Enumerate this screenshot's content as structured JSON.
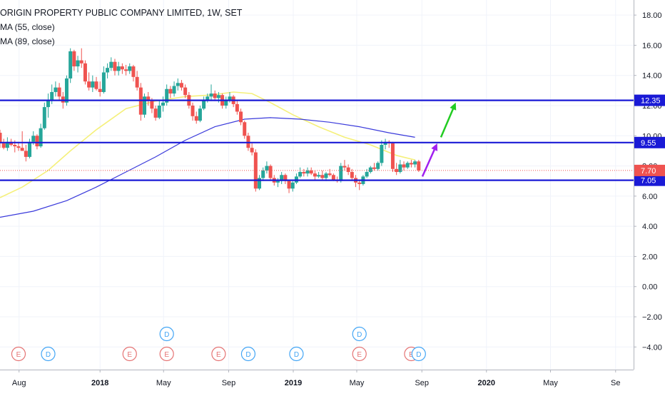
{
  "header": {
    "title": "ORIGIN PROPERTY PUBLIC COMPANY LIMITED, 1W, SET",
    "indicators": [
      "MA (55, close)",
      "MA (89, close)"
    ]
  },
  "colors": {
    "up": "#26a69a",
    "down": "#ef5350",
    "ma55": "#f5f07a",
    "ma89": "#3a3adb",
    "level": "#1a1ad6",
    "arrow_purple": "#a020f0",
    "arrow_green": "#22cc22",
    "current_price": "#ef5350",
    "earnings": "#e57373",
    "dividend": "#42a5f5"
  },
  "chart_data": {
    "type": "candlestick",
    "title": "ORIGIN PROPERTY PUBLIC COMPANY LIMITED, 1W, SET",
    "y_axis": {
      "min": -5.5,
      "max": 19,
      "ticks": [
        18,
        16,
        14,
        12,
        10,
        8,
        6,
        4,
        2,
        0,
        -2,
        -4
      ],
      "tick_labels": [
        "18.00",
        "16.00",
        "14.00",
        "12.00",
        "10.00",
        "8.00",
        "6.00",
        "4.00",
        "2.00",
        "0.00",
        "−2.00",
        "−4.00"
      ]
    },
    "x_axis": {
      "start": "2017-06-26",
      "end": "2020-10-05",
      "ticks": [
        {
          "label": "Aug",
          "date": "2017-08-01"
        },
        {
          "label": "2018",
          "date": "2018-01-01"
        },
        {
          "label": "May",
          "date": "2018-05-01"
        },
        {
          "label": "Sep",
          "date": "2018-09-01"
        },
        {
          "label": "2019",
          "date": "2019-01-01"
        },
        {
          "label": "May",
          "date": "2019-05-01"
        },
        {
          "label": "Sep",
          "date": "2019-09-01"
        },
        {
          "label": "2020",
          "date": "2020-01-01"
        },
        {
          "label": "May",
          "date": "2020-05-01"
        },
        {
          "label": "Se",
          "date": "2020-09-01"
        }
      ]
    },
    "candles": [
      [
        "2017-06-26",
        10.2,
        10.4,
        9.2,
        9.5
      ],
      [
        "2017-07-03",
        9.5,
        9.8,
        9.1,
        9.2
      ],
      [
        "2017-07-10",
        9.2,
        9.9,
        9.0,
        9.6
      ],
      [
        "2017-07-17",
        9.6,
        9.8,
        9.3,
        9.4
      ],
      [
        "2017-07-24",
        9.4,
        9.7,
        8.9,
        9.3
      ],
      [
        "2017-07-31",
        9.3,
        9.6,
        9.0,
        9.2
      ],
      [
        "2017-08-07",
        9.2,
        10.3,
        9.0,
        9.0
      ],
      [
        "2017-08-14",
        9.0,
        9.4,
        8.3,
        8.6
      ],
      [
        "2017-08-21",
        8.6,
        9.8,
        8.5,
        9.6
      ],
      [
        "2017-08-28",
        9.6,
        10.3,
        9.4,
        10.0
      ],
      [
        "2017-09-04",
        10.0,
        10.1,
        9.1,
        9.3
      ],
      [
        "2017-09-11",
        9.3,
        10.8,
        9.2,
        10.5
      ],
      [
        "2017-09-18",
        10.5,
        12.2,
        10.4,
        11.9
      ],
      [
        "2017-09-25",
        11.9,
        12.8,
        11.2,
        12.4
      ],
      [
        "2017-10-02",
        12.4,
        13.4,
        12.1,
        12.9
      ],
      [
        "2017-10-09",
        12.9,
        13.6,
        12.6,
        13.2
      ],
      [
        "2017-10-16",
        13.2,
        13.5,
        12.3,
        12.6
      ],
      [
        "2017-10-23",
        12.6,
        12.9,
        11.8,
        12.2
      ],
      [
        "2017-10-30",
        12.2,
        14.0,
        12.0,
        13.8
      ],
      [
        "2017-11-06",
        13.8,
        15.8,
        13.5,
        15.6
      ],
      [
        "2017-11-13",
        15.6,
        15.7,
        14.3,
        14.6
      ],
      [
        "2017-11-20",
        14.6,
        15.3,
        14.2,
        15.0
      ],
      [
        "2017-11-27",
        15.0,
        15.8,
        14.5,
        14.8
      ],
      [
        "2017-12-04",
        14.8,
        15.0,
        13.4,
        13.6
      ],
      [
        "2017-12-11",
        13.6,
        14.2,
        13.0,
        13.2
      ],
      [
        "2017-12-18",
        13.2,
        14.0,
        12.9,
        13.6
      ],
      [
        "2017-12-25",
        13.6,
        13.9,
        13.0,
        13.1
      ],
      [
        "2018-01-01",
        13.1,
        13.6,
        12.6,
        12.9
      ],
      [
        "2018-01-08",
        12.9,
        14.6,
        12.8,
        14.2
      ],
      [
        "2018-01-15",
        14.2,
        14.8,
        13.8,
        14.5
      ],
      [
        "2018-01-22",
        14.5,
        15.2,
        14.3,
        14.9
      ],
      [
        "2018-01-29",
        14.9,
        15.1,
        14.0,
        14.3
      ],
      [
        "2018-02-05",
        14.3,
        14.9,
        14.0,
        14.6
      ],
      [
        "2018-02-12",
        14.6,
        14.8,
        14.1,
        14.4
      ],
      [
        "2018-02-19",
        14.4,
        14.7,
        14.0,
        14.3
      ],
      [
        "2018-02-26",
        14.3,
        14.8,
        14.1,
        14.6
      ],
      [
        "2018-03-05",
        14.6,
        14.7,
        13.6,
        13.9
      ],
      [
        "2018-03-12",
        13.9,
        14.3,
        13.0,
        13.2
      ],
      [
        "2018-03-19",
        13.2,
        13.5,
        11.0,
        11.4
      ],
      [
        "2018-03-26",
        11.4,
        12.8,
        11.2,
        12.6
      ],
      [
        "2018-04-02",
        12.6,
        12.9,
        12.0,
        12.3
      ],
      [
        "2018-04-09",
        12.3,
        12.5,
        11.5,
        11.8
      ],
      [
        "2018-04-16",
        11.8,
        12.0,
        11.0,
        11.2
      ],
      [
        "2018-04-23",
        11.2,
        12.4,
        11.1,
        12.0
      ],
      [
        "2018-04-30",
        12.0,
        12.6,
        11.6,
        12.2
      ],
      [
        "2018-05-07",
        12.2,
        13.4,
        12.0,
        13.1
      ],
      [
        "2018-05-14",
        13.1,
        13.3,
        12.5,
        12.8
      ],
      [
        "2018-05-21",
        12.8,
        13.6,
        12.6,
        13.3
      ],
      [
        "2018-05-28",
        13.3,
        13.8,
        13.0,
        13.5
      ],
      [
        "2018-06-04",
        13.5,
        13.7,
        13.0,
        13.2
      ],
      [
        "2018-06-11",
        13.2,
        13.4,
        12.5,
        12.7
      ],
      [
        "2018-06-18",
        12.7,
        12.9,
        11.8,
        12.0
      ],
      [
        "2018-06-25",
        12.0,
        12.2,
        11.0,
        11.3
      ],
      [
        "2018-07-02",
        11.3,
        11.6,
        10.8,
        11.0
      ],
      [
        "2018-07-09",
        11.0,
        12.0,
        10.9,
        11.8
      ],
      [
        "2018-07-16",
        11.8,
        12.6,
        11.7,
        12.4
      ],
      [
        "2018-07-23",
        12.4,
        12.8,
        12.2,
        12.6
      ],
      [
        "2018-07-30",
        12.6,
        13.4,
        12.3,
        12.8
      ],
      [
        "2018-08-06",
        12.8,
        13.0,
        12.3,
        12.5
      ],
      [
        "2018-08-13",
        12.5,
        12.9,
        12.2,
        12.7
      ],
      [
        "2018-08-20",
        12.7,
        12.8,
        11.8,
        12.0
      ],
      [
        "2018-08-27",
        12.0,
        12.6,
        11.8,
        12.4
      ],
      [
        "2018-09-03",
        12.4,
        12.9,
        12.2,
        12.6
      ],
      [
        "2018-09-10",
        12.6,
        12.7,
        11.9,
        12.1
      ],
      [
        "2018-09-17",
        12.1,
        12.3,
        11.4,
        11.6
      ],
      [
        "2018-09-24",
        11.6,
        11.8,
        10.7,
        10.9
      ],
      [
        "2018-10-01",
        10.9,
        11.0,
        9.8,
        10.0
      ],
      [
        "2018-10-08",
        10.0,
        10.2,
        9.0,
        9.2
      ],
      [
        "2018-10-15",
        9.2,
        9.5,
        8.7,
        8.9
      ],
      [
        "2018-10-22",
        8.9,
        9.1,
        6.3,
        6.5
      ],
      [
        "2018-10-29",
        6.5,
        7.4,
        6.4,
        7.2
      ],
      [
        "2018-11-05",
        7.2,
        7.9,
        7.0,
        7.7
      ],
      [
        "2018-11-12",
        7.7,
        8.3,
        7.5,
        8.0
      ],
      [
        "2018-11-19",
        8.0,
        8.1,
        7.0,
        7.2
      ],
      [
        "2018-11-26",
        7.2,
        7.4,
        6.7,
        6.9
      ],
      [
        "2018-12-03",
        6.9,
        7.2,
        6.6,
        7.0
      ],
      [
        "2018-12-10",
        7.0,
        7.6,
        6.8,
        7.4
      ],
      [
        "2018-12-17",
        7.4,
        7.5,
        6.8,
        7.0
      ],
      [
        "2018-12-24",
        7.0,
        7.1,
        6.2,
        6.5
      ],
      [
        "2018-12-31",
        6.5,
        7.0,
        6.3,
        6.9
      ],
      [
        "2019-01-07",
        6.9,
        7.5,
        6.8,
        7.3
      ],
      [
        "2019-01-14",
        7.3,
        7.9,
        7.2,
        7.6
      ],
      [
        "2019-01-21",
        7.6,
        7.8,
        7.3,
        7.5
      ],
      [
        "2019-01-28",
        7.5,
        7.9,
        7.3,
        7.7
      ],
      [
        "2019-02-04",
        7.7,
        7.9,
        7.4,
        7.5
      ],
      [
        "2019-02-11",
        7.5,
        7.7,
        7.1,
        7.3
      ],
      [
        "2019-02-18",
        7.3,
        7.6,
        7.2,
        7.4
      ],
      [
        "2019-02-25",
        7.4,
        7.7,
        7.1,
        7.2
      ],
      [
        "2019-03-04",
        7.2,
        7.6,
        7.0,
        7.5
      ],
      [
        "2019-03-11",
        7.5,
        7.8,
        7.3,
        7.4
      ],
      [
        "2019-03-18",
        7.4,
        7.5,
        7.0,
        7.1
      ],
      [
        "2019-03-25",
        7.1,
        7.3,
        6.9,
        7.0
      ],
      [
        "2019-04-01",
        7.0,
        8.2,
        6.9,
        8.0
      ],
      [
        "2019-04-08",
        8.0,
        8.4,
        7.7,
        7.9
      ],
      [
        "2019-04-15",
        7.9,
        8.1,
        7.4,
        7.6
      ],
      [
        "2019-04-22",
        7.6,
        7.8,
        7.0,
        7.2
      ],
      [
        "2019-04-29",
        7.2,
        7.4,
        6.6,
        6.9
      ],
      [
        "2019-05-06",
        6.9,
        7.1,
        6.4,
        6.8
      ],
      [
        "2019-05-13",
        6.8,
        7.4,
        6.7,
        7.3
      ],
      [
        "2019-05-20",
        7.3,
        7.8,
        7.2,
        7.6
      ],
      [
        "2019-05-27",
        7.6,
        8.0,
        7.5,
        7.9
      ],
      [
        "2019-06-03",
        7.9,
        8.2,
        7.7,
        7.8
      ],
      [
        "2019-06-10",
        7.8,
        8.3,
        7.7,
        8.2
      ],
      [
        "2019-06-17",
        8.2,
        9.7,
        8.0,
        9.4
      ],
      [
        "2019-06-24",
        9.4,
        9.8,
        9.1,
        9.6
      ],
      [
        "2019-07-01",
        9.6,
        9.7,
        9.2,
        9.5
      ],
      [
        "2019-07-08",
        9.5,
        9.6,
        7.6,
        7.8
      ],
      [
        "2019-07-15",
        7.8,
        8.2,
        7.4,
        7.6
      ],
      [
        "2019-07-22",
        7.6,
        8.4,
        7.5,
        8.1
      ],
      [
        "2019-07-29",
        8.1,
        8.3,
        7.7,
        7.9
      ],
      [
        "2019-08-05",
        7.9,
        8.3,
        7.8,
        8.2
      ],
      [
        "2019-08-12",
        8.2,
        8.4,
        7.9,
        8.1
      ],
      [
        "2019-08-19",
        8.1,
        8.4,
        7.9,
        8.3
      ],
      [
        "2019-08-26",
        8.3,
        8.4,
        7.6,
        7.7
      ]
    ],
    "ma55": [
      [
        "2017-06-26",
        5.9
      ],
      [
        "2017-08-07",
        6.6
      ],
      [
        "2017-09-25",
        7.7
      ],
      [
        "2017-11-06",
        9.0
      ],
      [
        "2017-12-25",
        10.4
      ],
      [
        "2018-02-19",
        11.8
      ],
      [
        "2018-04-16",
        12.3
      ],
      [
        "2018-06-11",
        12.6
      ],
      [
        "2018-07-30",
        12.7
      ],
      [
        "2018-09-10",
        12.9
      ],
      [
        "2018-10-15",
        12.8
      ],
      [
        "2018-11-19",
        12.2
      ],
      [
        "2018-12-31",
        11.4
      ],
      [
        "2019-02-18",
        10.6
      ],
      [
        "2019-04-08",
        9.9
      ],
      [
        "2019-05-27",
        9.4
      ],
      [
        "2019-07-15",
        8.7
      ],
      [
        "2019-08-19",
        8.4
      ]
    ],
    "ma89": [
      [
        "2017-06-26",
        4.6
      ],
      [
        "2017-08-28",
        5.0
      ],
      [
        "2017-10-30",
        5.7
      ],
      [
        "2017-12-25",
        6.6
      ],
      [
        "2018-02-19",
        7.6
      ],
      [
        "2018-04-16",
        8.6
      ],
      [
        "2018-06-11",
        9.7
      ],
      [
        "2018-08-06",
        10.6
      ],
      [
        "2018-10-01",
        11.1
      ],
      [
        "2018-11-19",
        11.2
      ],
      [
        "2019-01-14",
        11.1
      ],
      [
        "2019-03-11",
        10.9
      ],
      [
        "2019-05-06",
        10.6
      ],
      [
        "2019-07-01",
        10.2
      ],
      [
        "2019-08-19",
        9.9
      ]
    ],
    "levels": [
      {
        "value": 12.35,
        "label": "12.35"
      },
      {
        "value": 9.55,
        "label": "9.55"
      },
      {
        "value": 7.05,
        "label": "7.05"
      }
    ],
    "current_price": {
      "value": 7.7,
      "label": "7.70"
    },
    "arrows": [
      {
        "color": "purple",
        "from": [
          "2019-09-02",
          7.3
        ],
        "to": [
          "2019-09-30",
          9.5
        ]
      },
      {
        "color": "green",
        "from": [
          "2019-10-07",
          9.9
        ],
        "to": [
          "2019-11-04",
          12.2
        ]
      }
    ],
    "events": [
      {
        "type": "E",
        "date": "2017-07-31"
      },
      {
        "type": "D",
        "date": "2017-09-25"
      },
      {
        "type": "E",
        "date": "2018-02-26"
      },
      {
        "type": "E",
        "date": "2018-05-07"
      },
      {
        "type": "D",
        "date": "2018-05-07",
        "stacked": true
      },
      {
        "type": "E",
        "date": "2018-08-13"
      },
      {
        "type": "D",
        "date": "2018-10-08"
      },
      {
        "type": "D",
        "date": "2019-01-07"
      },
      {
        "type": "E",
        "date": "2019-05-06"
      },
      {
        "type": "D",
        "date": "2019-05-06",
        "stacked": true
      },
      {
        "type": "E",
        "date": "2019-08-12"
      },
      {
        "type": "D",
        "date": "2019-08-26"
      }
    ]
  }
}
